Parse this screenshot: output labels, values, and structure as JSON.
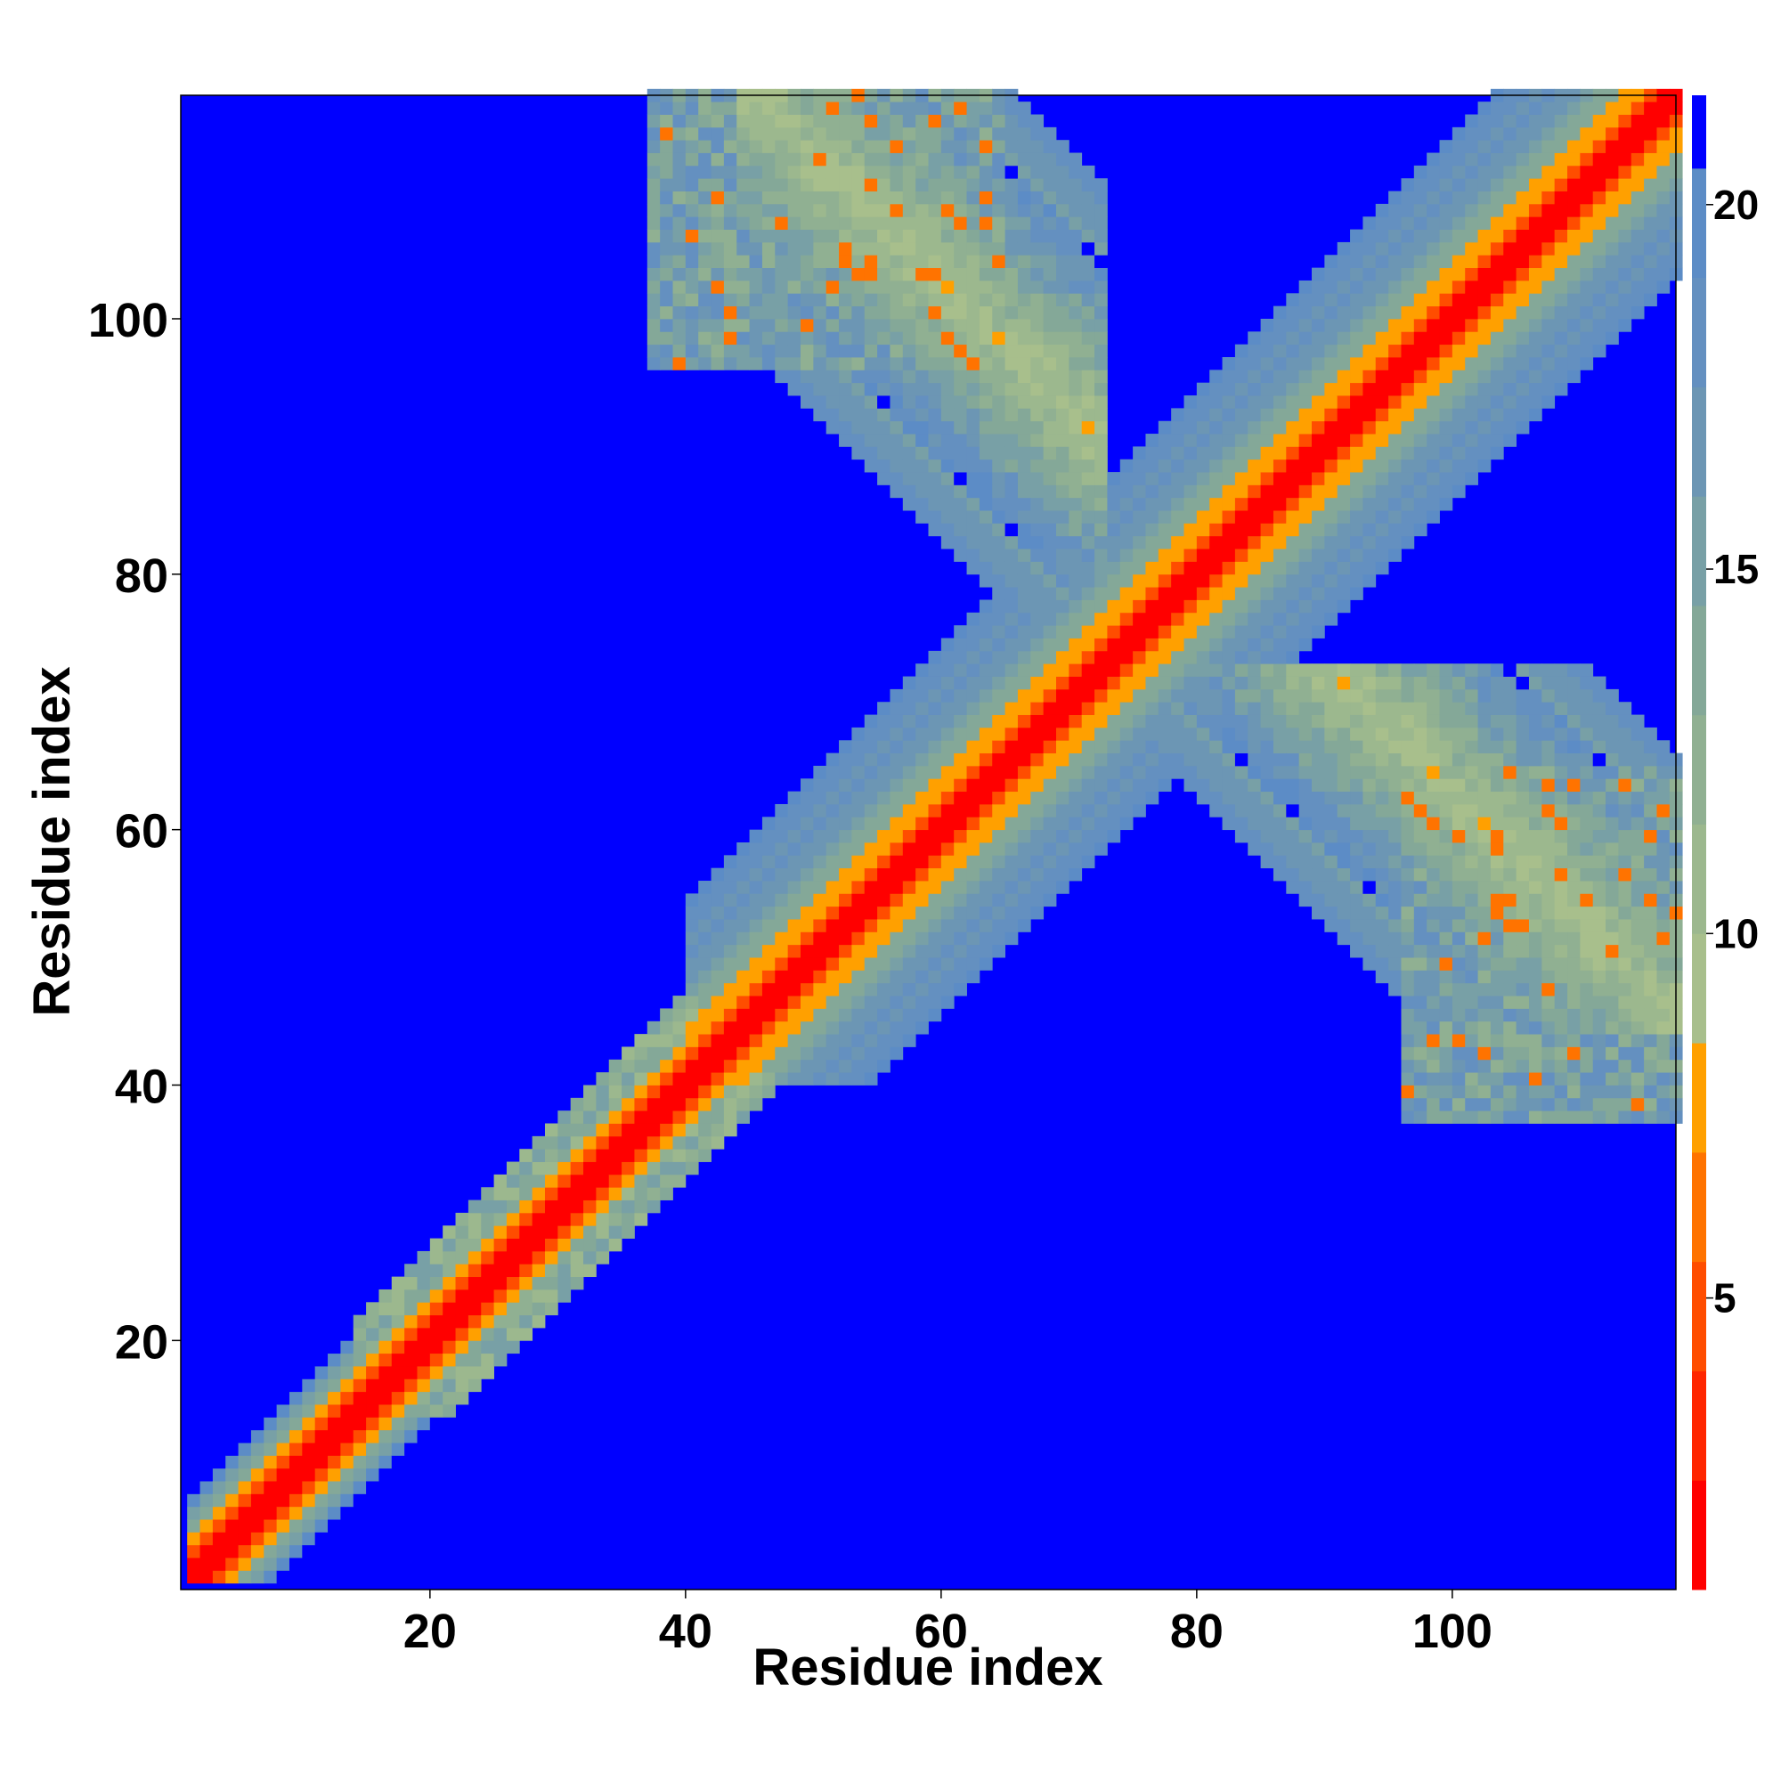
{
  "chart_data": {
    "type": "heatmap",
    "title": "",
    "xlabel": "Residue index",
    "ylabel": "Residue index",
    "n_residues": 117,
    "x_range": [
      1,
      117
    ],
    "y_range": [
      1,
      117
    ],
    "x_ticks": [
      20,
      40,
      60,
      80,
      100
    ],
    "y_ticks": [
      20,
      40,
      60,
      80,
      100
    ],
    "colorbar": {
      "range": [
        1,
        21.5
      ],
      "ticks": [
        5,
        10,
        15,
        20
      ],
      "levels": [
        {
          "upper": 2.5,
          "color": "#ff0000"
        },
        {
          "upper": 4.0,
          "color": "#ff2600"
        },
        {
          "upper": 5.5,
          "color": "#ff4d00"
        },
        {
          "upper": 7.0,
          "color": "#ff7300"
        },
        {
          "upper": 8.5,
          "color": "#ffa000"
        },
        {
          "upper": 10.0,
          "color": "#a8bf8c"
        },
        {
          "upper": 11.5,
          "color": "#9cb88e"
        },
        {
          "upper": 13.0,
          "color": "#90b092"
        },
        {
          "upper": 14.5,
          "color": "#84a898"
        },
        {
          "upper": 16.0,
          "color": "#78a0a6"
        },
        {
          "upper": 17.5,
          "color": "#6c96b4"
        },
        {
          "upper": 19.0,
          "color": "#6490c0"
        },
        {
          "upper": 20.5,
          "color": "#5c8cc6"
        },
        {
          "upper": 21.5,
          "color": "#0000ff"
        }
      ],
      "background_color": "#0000ff"
    },
    "features": [
      {
        "kind": "diagonal-band",
        "from": 1,
        "to": 117,
        "core_width": 1.5
      },
      {
        "kind": "helix-band-near-diagonal",
        "from": 40,
        "to": 117,
        "width": 6
      },
      {
        "kind": "antiparallel-contact",
        "i_range": [
          45,
          70
        ],
        "j_range": [
          70,
          117
        ],
        "center_sum": 162
      },
      {
        "kind": "offdiagonal-block",
        "i_range": [
          98,
          117
        ],
        "j_range": [
          38,
          62
        ]
      },
      {
        "kind": "strand-cluster",
        "i_range": [
          15,
          40
        ]
      }
    ]
  }
}
